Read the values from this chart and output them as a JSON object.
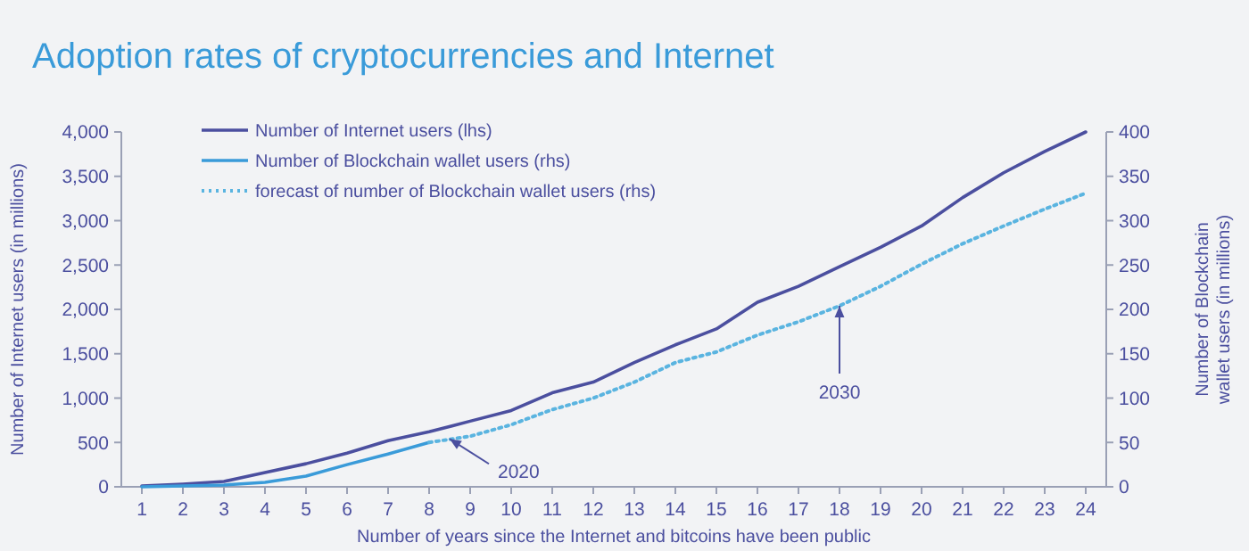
{
  "chart_data": {
    "type": "line",
    "title": "Adoption rates of cryptocurrencies and Internet",
    "xlabel": "Number of years since the Internet and bitcoins have been public",
    "ylabel": "Number of Internet users (in millions)",
    "y2label": "Number of Blockchain wallet users (in millions)",
    "x": [
      1,
      2,
      3,
      4,
      5,
      6,
      7,
      8,
      9,
      10,
      11,
      12,
      13,
      14,
      15,
      16,
      17,
      18,
      19,
      20,
      21,
      22,
      23,
      24
    ],
    "xlim": [
      0.5,
      24.5
    ],
    "xticks": [
      1,
      2,
      3,
      4,
      5,
      6,
      7,
      8,
      9,
      10,
      11,
      12,
      13,
      14,
      15,
      16,
      17,
      18,
      19,
      20,
      21,
      22,
      23,
      24
    ],
    "ylim": [
      0,
      4000
    ],
    "yticks": [
      {
        "value": 0,
        "label": "0"
      },
      {
        "value": 500,
        "label": "500"
      },
      {
        "value": 1000,
        "label": "1,000"
      },
      {
        "value": 1500,
        "label": "1,500"
      },
      {
        "value": 2000,
        "label": "2,000"
      },
      {
        "value": 2500,
        "label": "2,500"
      },
      {
        "value": 3000,
        "label": "3,000"
      },
      {
        "value": 3500,
        "label": "3,500"
      },
      {
        "value": 4000,
        "label": "4,000"
      }
    ],
    "y2lim": [
      0,
      400
    ],
    "y2ticks": [
      0,
      50,
      100,
      150,
      200,
      250,
      300,
      350,
      400
    ],
    "legend": "top left",
    "grid": false,
    "marker": "none",
    "series": [
      {
        "name": "Number of Internet users (lhs)",
        "color": "#4b4f9f",
        "line_style": "solid",
        "values": [
          10,
          30,
          60,
          160,
          260,
          380,
          520,
          620,
          740,
          860,
          1060,
          1180,
          1400,
          1600,
          1780,
          2080,
          2260,
          2480,
          2700,
          2940,
          3260,
          3540,
          3780,
          4000
        ]
      },
      {
        "name": "Number of Blockchain wallet users (rhs)",
        "color": "#3a9bd9",
        "line_style": "solid",
        "axis": "y2",
        "x": [
          1,
          2,
          3,
          4,
          5,
          6,
          7,
          8
        ],
        "values": [
          0,
          1,
          2,
          5,
          12,
          25,
          37,
          50
        ]
      },
      {
        "name": "forecast of number of Blockchain wallet users (rhs)",
        "color": "#5ab4e0",
        "line_style": "dotted",
        "axis": "y2",
        "x": [
          8,
          9,
          10,
          11,
          12,
          13,
          14,
          15,
          16,
          17,
          18,
          19,
          20,
          21,
          22,
          23,
          24
        ],
        "values": [
          50,
          57,
          70,
          87,
          100,
          118,
          140,
          152,
          171,
          186,
          204,
          226,
          251,
          274,
          294,
          313,
          331
        ]
      }
    ],
    "annotations": [
      {
        "text": "2020",
        "x": 8.5,
        "y": 540
      },
      {
        "text": "2030",
        "x": 18,
        "y": 2040
      }
    ]
  }
}
